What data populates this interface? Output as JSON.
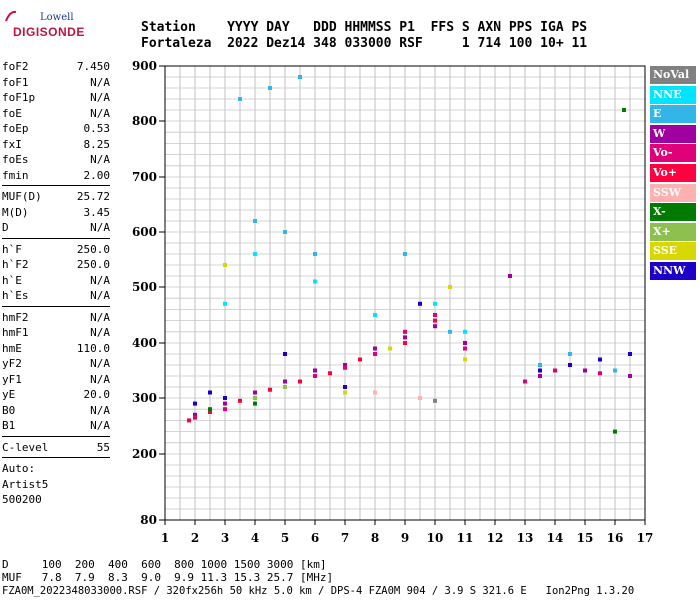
{
  "logo": {
    "top": "Lowell",
    "bottom": "DIGISONDE"
  },
  "header": {
    "line1": "Station    YYYY DAY   DDD HHMMSS P1  FFS S AXN PPS IGA PS",
    "line2": "Fortaleza  2022 Dez14 348 033000 RSF     1 714 100 10+ 11"
  },
  "params": {
    "group1": [
      {
        "k": "foF2",
        "v": "7.450"
      },
      {
        "k": "foF1",
        "v": "N/A"
      },
      {
        "k": "foF1p",
        "v": "N/A"
      },
      {
        "k": "foE",
        "v": "N/A"
      },
      {
        "k": "foEp",
        "v": "0.53"
      },
      {
        "k": "fxI",
        "v": "8.25"
      },
      {
        "k": "foEs",
        "v": "N/A"
      },
      {
        "k": "fmin",
        "v": "2.00"
      }
    ],
    "group2": [
      {
        "k": "MUF(D)",
        "v": "25.72"
      },
      {
        "k": "M(D)",
        "v": "3.45"
      },
      {
        "k": "D",
        "v": "N/A"
      }
    ],
    "group3": [
      {
        "k": "h`F",
        "v": "250.0"
      },
      {
        "k": "h`F2",
        "v": "250.0"
      },
      {
        "k": "h`E",
        "v": "N/A"
      },
      {
        "k": "h`Es",
        "v": "N/A"
      }
    ],
    "group4": [
      {
        "k": "hmF2",
        "v": "N/A"
      },
      {
        "k": "hmF1",
        "v": "N/A"
      },
      {
        "k": "hmE",
        "v": "110.0"
      },
      {
        "k": "yF2",
        "v": "N/A"
      },
      {
        "k": "yF1",
        "v": "N/A"
      },
      {
        "k": "yE",
        "v": "20.0"
      },
      {
        "k": "B0",
        "v": "N/A"
      },
      {
        "k": "B1",
        "v": "N/A"
      }
    ],
    "group5": [
      {
        "k": "C-level",
        "v": "55"
      }
    ],
    "auto": [
      "Auto:",
      "Artist5",
      "500200"
    ]
  },
  "legend": [
    {
      "label": "NoVal",
      "color": "#808080"
    },
    {
      "label": "NNE",
      "color": "#00e5ff"
    },
    {
      "label": "E",
      "color": "#33b5e8"
    },
    {
      "label": "W",
      "color": "#a000a0"
    },
    {
      "label": "Vo-",
      "color": "#e0007a"
    },
    {
      "label": "Vo+",
      "color": "#ff0040"
    },
    {
      "label": "SSW",
      "color": "#ffb0b0"
    },
    {
      "label": "X-",
      "color": "#007a00"
    },
    {
      "label": "X+",
      "color": "#8ec050"
    },
    {
      "label": "SSE",
      "color": "#d8d800"
    },
    {
      "label": "NNW",
      "color": "#1c00c8"
    }
  ],
  "chart_data": {
    "type": "scatter",
    "xlim": [
      1,
      17
    ],
    "ylim": [
      80,
      900
    ],
    "x_ticks": [
      "1",
      "2",
      "3",
      "4",
      "5",
      "6",
      "7",
      "8",
      "9",
      "10",
      "11",
      "12",
      "13",
      "14",
      "15",
      "16",
      "17"
    ],
    "y_ticks": [
      "80",
      "200",
      "300",
      "400",
      "500",
      "600",
      "700",
      "800",
      "900"
    ],
    "grid": true,
    "legend_position": "right",
    "series": [
      {
        "name": "W",
        "points": [
          [
            2,
            270
          ],
          [
            3,
            290
          ],
          [
            4,
            310
          ],
          [
            5,
            330
          ],
          [
            6,
            350
          ],
          [
            7,
            360
          ],
          [
            8,
            390
          ],
          [
            9,
            410
          ],
          [
            10,
            430
          ],
          [
            11,
            400
          ],
          [
            12.5,
            520
          ],
          [
            13.5,
            340
          ],
          [
            15,
            350
          ],
          [
            16.5,
            340
          ]
        ]
      },
      {
        "name": "Vo-",
        "points": [
          [
            2,
            265
          ],
          [
            3,
            280
          ],
          [
            4,
            300
          ],
          [
            5,
            320
          ],
          [
            6,
            340
          ],
          [
            7,
            355
          ],
          [
            8,
            380
          ],
          [
            9,
            420
          ],
          [
            10,
            450
          ],
          [
            11,
            390
          ],
          [
            13,
            330
          ],
          [
            14,
            350
          ],
          [
            15.5,
            345
          ]
        ]
      },
      {
        "name": "Vo+",
        "points": [
          [
            1.8,
            260
          ],
          [
            2.5,
            275
          ],
          [
            3.5,
            295
          ],
          [
            4.5,
            315
          ],
          [
            5.5,
            330
          ],
          [
            6.5,
            345
          ],
          [
            7.5,
            370
          ],
          [
            9,
            400
          ],
          [
            10,
            440
          ]
        ]
      },
      {
        "name": "NNW",
        "points": [
          [
            2,
            290
          ],
          [
            2.5,
            310
          ],
          [
            3,
            300
          ],
          [
            5,
            380
          ],
          [
            7,
            320
          ],
          [
            9.5,
            470
          ],
          [
            13.5,
            350
          ],
          [
            14.5,
            360
          ],
          [
            15.5,
            370
          ],
          [
            16.5,
            380
          ]
        ]
      },
      {
        "name": "E",
        "points": [
          [
            3.5,
            840
          ],
          [
            4.5,
            860
          ],
          [
            5.5,
            880
          ],
          [
            4,
            620
          ],
          [
            5,
            600
          ],
          [
            6,
            560
          ],
          [
            9,
            560
          ],
          [
            10.5,
            420
          ],
          [
            13.5,
            360
          ],
          [
            14.5,
            380
          ],
          [
            16,
            350
          ]
        ]
      },
      {
        "name": "NNE",
        "points": [
          [
            3,
            470
          ],
          [
            4,
            560
          ],
          [
            6,
            510
          ],
          [
            8,
            450
          ],
          [
            10,
            470
          ],
          [
            11,
            420
          ]
        ]
      },
      {
        "name": "SSE",
        "points": [
          [
            3,
            540
          ],
          [
            8.5,
            390
          ],
          [
            10.5,
            500
          ],
          [
            11,
            370
          ],
          [
            7,
            310
          ]
        ]
      },
      {
        "name": "X-",
        "points": [
          [
            2.5,
            280
          ],
          [
            4,
            290
          ],
          [
            16.3,
            820
          ],
          [
            16,
            240
          ]
        ]
      },
      {
        "name": "X+",
        "points": [
          [
            4,
            300
          ],
          [
            5,
            320
          ]
        ]
      },
      {
        "name": "SSW",
        "points": [
          [
            9.5,
            300
          ],
          [
            8,
            310
          ]
        ]
      },
      {
        "name": "NoVal",
        "points": [
          [
            10,
            295
          ]
        ]
      }
    ]
  },
  "footer": {
    "line1": "D     100  200  400  600  800 1000 1500 3000 [km]",
    "line2": "MUF   7.8  7.9  8.3  9.0  9.9 11.3 15.3 25.7 [MHz]",
    "line3": "FZA0M_2022348033000.RSF / 320fx256h 50 kHz 5.0 km / DPS-4 FZA0M 904 / 3.9 S 321.6 E   Ion2Png 1.3.20"
  }
}
